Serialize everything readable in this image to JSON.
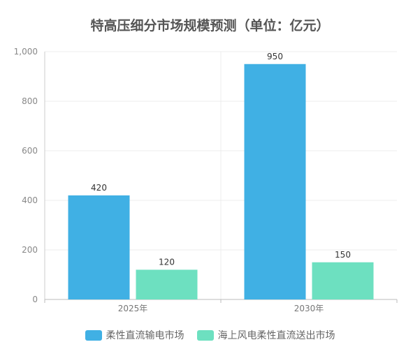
{
  "chart_data": {
    "type": "bar",
    "title": "特高压细分市场规模预测（单位：亿元）",
    "categories": [
      "2025年",
      "2030年"
    ],
    "series": [
      {
        "name": "柔性直流输电市场",
        "values": [
          420,
          950
        ],
        "color": "#40b0e4"
      },
      {
        "name": "海上风电柔性直流送出市场",
        "values": [
          120,
          150
        ],
        "color": "#6de0c0"
      }
    ],
    "ylim": [
      0,
      1000
    ],
    "yticks": [
      "0",
      "200",
      "400",
      "600",
      "800",
      "1,000"
    ],
    "grid": true,
    "legend_position": "bottom"
  }
}
